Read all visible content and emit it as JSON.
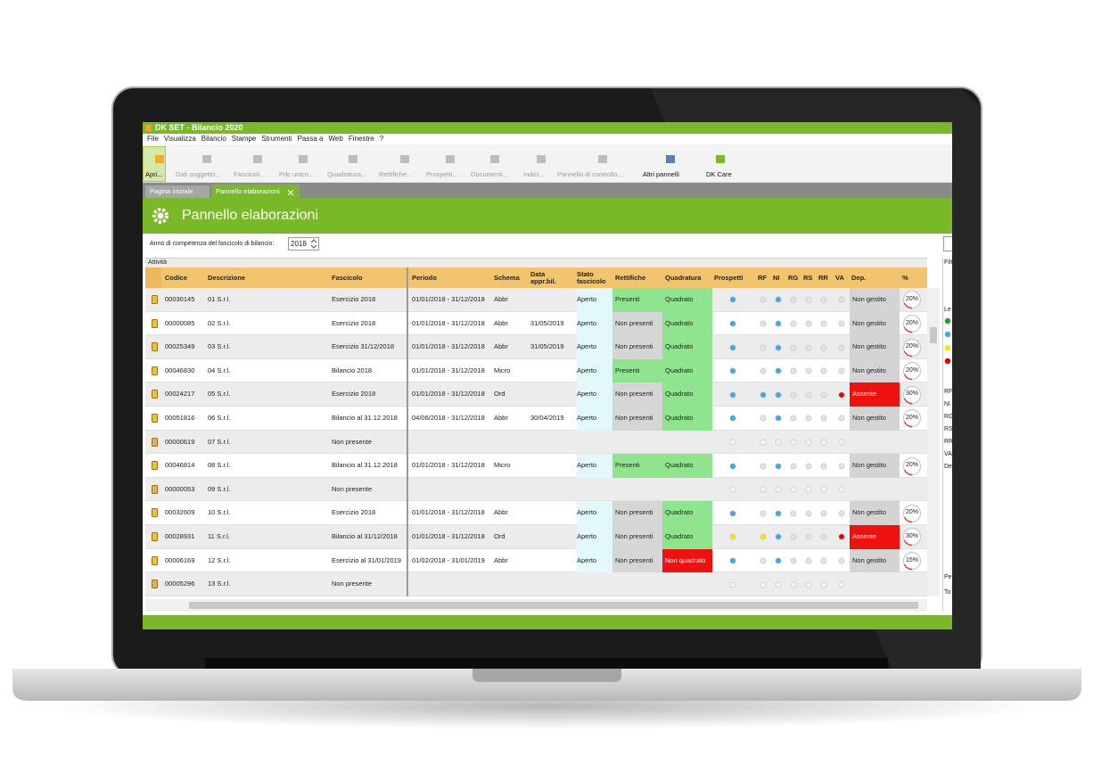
{
  "window": {
    "title": "DK SET - Bilancio 2020"
  },
  "menu": [
    "File",
    "Visualizza",
    "Bilancio",
    "Stampe",
    "Strumenti",
    "Passa a",
    "Web",
    "Finestre",
    "?"
  ],
  "toolbar": [
    {
      "label": "Apri...",
      "enabled": true
    },
    {
      "label": "Dati soggetto...",
      "enabled": false
    },
    {
      "label": "Fascicoli...",
      "enabled": false
    },
    {
      "label": "Pdc unico...",
      "enabled": false
    },
    {
      "label": "Quadratura...",
      "enabled": false
    },
    {
      "label": "Rettifiche...",
      "enabled": false
    },
    {
      "label": "Prospetti...",
      "enabled": false
    },
    {
      "label": "Documenti...",
      "enabled": false
    },
    {
      "label": "Indici...",
      "enabled": false
    },
    {
      "label": "Pannello di controllo...",
      "enabled": false
    },
    {
      "label": "Altri pannelli",
      "enabled": true
    },
    {
      "label": "DK Care",
      "enabled": true
    }
  ],
  "tabs": [
    "Pagina iniziale",
    "Pannello elaborazioni"
  ],
  "panel": {
    "title": "Pannello elaborazioni",
    "year_label": "Anno di competenza del fascicolo di bilancio:",
    "year": "2018",
    "group": "Attività"
  },
  "table": {
    "columns": [
      "Codice",
      "Descrizione",
      "Fascicolo",
      "Periodo",
      "Schema",
      "Data appr.bil.",
      "Stato fascicolo",
      "Rettifiche",
      "Quadratura",
      "Prospetti",
      "RF",
      "NI",
      "RG",
      "RS",
      "RR",
      "VA",
      "Dep.",
      "%"
    ],
    "rows": [
      {
        "codice": "00030145",
        "descrizione": "01 S.r.l.",
        "fascicolo": "Esercizio 2018",
        "periodo": "01/01/2018 - 31/12/2018",
        "schema": "Abbr",
        "stato": "Aperto",
        "rettifiche": "Presenti",
        "quadratura": "Quadrato",
        "dep": "Non gestito",
        "perc": "20%",
        "colors": [
          "#8ee58e",
          "#8ee58e",
          "#d4d4d4"
        ],
        "dots": [
          "#3ea8ee",
          "#e2e2e2",
          "#3ea8ee",
          "#e2e2e2",
          "#e2e2e2",
          "#e2e2e2",
          "#e2e2e2"
        ]
      },
      {
        "codice": "00000085",
        "descrizione": "02 S.r.l.",
        "fascicolo": "Esercizio 2018",
        "periodo": "01/01/2018 - 31/12/2018",
        "schema": "Abbr",
        "data_appr": "31/05/2019",
        "stato": "Aperto",
        "rettifiche": "Non presenti",
        "quadratura": "Quadrato",
        "dep": "Non gestito",
        "perc": "20%",
        "colors": [
          "#d6d6d6",
          "#8ee58e",
          "#d4d4d4"
        ],
        "dots": [
          "#3ea8ee",
          "#e2e2e2",
          "#3ea8ee",
          "#e2e2e2",
          "#e2e2e2",
          "#e2e2e2",
          "#e2e2e2"
        ]
      },
      {
        "codice": "00025349",
        "descrizione": "03 S.r.l.",
        "fascicolo": "Esercizio 31/12/2018",
        "periodo": "01/01/2018 - 31/12/2018",
        "schema": "Abbr",
        "data_appr": "31/05/2019",
        "stato": "Aperto",
        "rettifiche": "Non presenti",
        "quadratura": "Quadrato",
        "dep": "Non gestito",
        "perc": "20%",
        "colors": [
          "#d6d6d6",
          "#8ee58e",
          "#d4d4d4"
        ],
        "dots": [
          "#3ea8ee",
          "#e2e2e2",
          "#3ea8ee",
          "#e2e2e2",
          "#e2e2e2",
          "#e2e2e2",
          "#e2e2e2"
        ]
      },
      {
        "codice": "00046830",
        "descrizione": "04 S.r.l.",
        "fascicolo": "Bilancio 2018",
        "periodo": "01/01/2018 - 31/12/2018",
        "schema": "Micro",
        "stato": "Aperto",
        "rettifiche": "Presenti",
        "quadratura": "Quadrato",
        "dep": "Non gestito",
        "perc": "20%",
        "colors": [
          "#8ee58e",
          "#8ee58e",
          "#d4d4d4"
        ],
        "dots": [
          "#3ea8ee",
          "#e2e2e2",
          "#3ea8ee",
          "#e2e2e2",
          "#e2e2e2",
          "#e2e2e2",
          "#e2e2e2"
        ]
      },
      {
        "codice": "00024217",
        "descrizione": "05 S.r.l.",
        "fascicolo": "Esercizio 2018",
        "periodo": "01/01/2018 - 31/12/2018",
        "schema": "Ord",
        "stato": "Aperto",
        "rettifiche": "Non presenti",
        "quadratura": "Quadrato",
        "dep": "Assente",
        "perc": "30%",
        "colors": [
          "#d6d6d6",
          "#8ee58e",
          "#f01010"
        ],
        "dots": [
          "#3ea8ee",
          "#3ea8ee",
          "#3ea8ee",
          "#e2e2e2",
          "#e2e2e2",
          "#e2e2e2",
          "#e80000"
        ]
      },
      {
        "codice": "00051816",
        "descrizione": "06 S.r.l.",
        "fascicolo": "Bilancio al 31.12.2018",
        "periodo": "04/06/2018 - 31/12/2018",
        "schema": "Abbr",
        "data_appr": "30/04/2019",
        "stato": "Aperto",
        "rettifiche": "Non presenti",
        "quadratura": "Quadrato",
        "dep": "Non gestito",
        "perc": "20%",
        "colors": [
          "#d6d6d6",
          "#8ee58e",
          "#d4d4d4"
        ],
        "dots": [
          "#3ea8ee",
          "#e2e2e2",
          "#3ea8ee",
          "#e2e2e2",
          "#e2e2e2",
          "#e2e2e2",
          "#e2e2e2"
        ]
      },
      {
        "codice": "00000619",
        "descrizione": "07 S.r.l.",
        "fascicolo": "Non presente",
        "dots": [
          "#f2f2f2",
          "#f2f2f2",
          "#f2f2f2",
          "#f2f2f2",
          "#f2f2f2",
          "#f2f2f2",
          "#f2f2f2"
        ]
      },
      {
        "codice": "00046814",
        "descrizione": "08 S.r.l.",
        "fascicolo": "Bilancio al 31.12.2018",
        "periodo": "01/01/2018 - 31/12/2018",
        "schema": "Micro",
        "stato": "Aperto",
        "rettifiche": "Presenti",
        "quadratura": "Quadrato",
        "dep": "Non gestito",
        "perc": "20%",
        "colors": [
          "#8ee58e",
          "#8ee58e",
          "#d4d4d4"
        ],
        "dots": [
          "#3ea8ee",
          "#e2e2e2",
          "#3ea8ee",
          "#e2e2e2",
          "#e2e2e2",
          "#e2e2e2",
          "#e2e2e2"
        ]
      },
      {
        "codice": "00000053",
        "descrizione": "09 S.r.l.",
        "fascicolo": "Non presente",
        "dots": [
          "#f2f2f2",
          "#f2f2f2",
          "#f2f2f2",
          "#f2f2f2",
          "#f2f2f2",
          "#f2f2f2",
          "#f2f2f2"
        ]
      },
      {
        "codice": "00032609",
        "descrizione": "10 S.r.l.",
        "fascicolo": "Esercizio 2018",
        "periodo": "01/01/2018 - 31/12/2018",
        "schema": "Abbr",
        "stato": "Aperto",
        "rettifiche": "Non presenti",
        "quadratura": "Quadrato",
        "dep": "Non gestito",
        "perc": "20%",
        "colors": [
          "#d6d6d6",
          "#8ee58e",
          "#d4d4d4"
        ],
        "dots": [
          "#3ea8ee",
          "#e2e2e2",
          "#3ea8ee",
          "#e2e2e2",
          "#e2e2e2",
          "#e2e2e2",
          "#e2e2e2"
        ]
      },
      {
        "codice": "00028931",
        "descrizione": "11 S.r.l.",
        "fascicolo": "Bilancio al 31/12/2018",
        "periodo": "01/01/2018 - 31/12/2018",
        "schema": "Ord",
        "stato": "Aperto",
        "rettifiche": "Non presenti",
        "quadratura": "Quadrato",
        "dep": "Assente",
        "perc": "30%",
        "colors": [
          "#d6d6d6",
          "#8ee58e",
          "#f01010"
        ],
        "dots": [
          "#ffe400",
          "#ffe400",
          "#3ea8ee",
          "#e2e2e2",
          "#e2e2e2",
          "#e2e2e2",
          "#e80000"
        ]
      },
      {
        "codice": "00006169",
        "descrizione": "12 S.r.l.",
        "fascicolo": "Esercizio al 31/01/2019",
        "periodo": "01/02/2018 - 31/01/2019",
        "schema": "Abbr",
        "stato": "Aperto",
        "rettifiche": "Non presenti",
        "quadratura": "Non quadrato",
        "dep": "Non gestito",
        "perc": "15%",
        "colors": [
          "#d6d6d6",
          "#f01010",
          "#d4d4d4"
        ],
        "dots": [
          "#3ea8ee",
          "#e2e2e2",
          "#3ea8ee",
          "#e2e2e2",
          "#e2e2e2",
          "#e2e2e2",
          "#e2e2e2"
        ]
      },
      {
        "codice": "00005296",
        "descrizione": "13 S.r.l.",
        "fascicolo": "Non presente",
        "dots": [
          "#f2f2f2",
          "#f2f2f2",
          "#f2f2f2",
          "#f2f2f2",
          "#f2f2f2",
          "#f2f2f2",
          "#f2f2f2"
        ]
      }
    ]
  },
  "side": {
    "filter": "Filt",
    "legend": "Le",
    "codes": [
      "RF",
      "NI",
      "RG",
      "RS",
      "RR",
      "VA",
      "De"
    ],
    "footer": [
      "Pe",
      "To"
    ]
  }
}
